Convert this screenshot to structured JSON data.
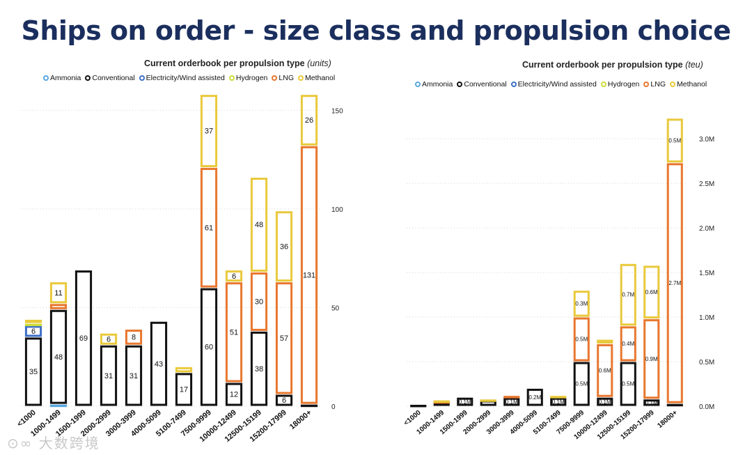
{
  "page": {
    "title": "Ships on order - size class and propulsion choice"
  },
  "watermark": "⊙∞ 大数跨境",
  "legend": [
    {
      "name": "Ammonia",
      "color": "#5aa7e0"
    },
    {
      "name": "Conventional",
      "color": "#111111"
    },
    {
      "name": "Electricity/Wind assisted",
      "color": "#3d6fc9"
    },
    {
      "name": "Hydrogen",
      "color": "#cddc39"
    },
    {
      "name": "LNG",
      "color": "#e8772e"
    },
    {
      "name": "Methanol",
      "color": "#e9c93b"
    }
  ],
  "chart_data": [
    {
      "type": "bar",
      "stacked": true,
      "title": "Current orderbook per propulsion type",
      "unit": "(units)",
      "categories": [
        "<1000",
        "1000-1499",
        "1500-1999",
        "2000-2999",
        "3000-3999",
        "4000-5099",
        "5100-7499",
        "7500-9999",
        "10000-12499",
        "12500-15199",
        "15200-17999",
        "18000+"
      ],
      "ylim": [
        0,
        160
      ],
      "yticks": [
        0,
        50,
        100,
        150
      ],
      "ytick_labels": [
        "0",
        "50",
        "100",
        "150"
      ],
      "series": [
        {
          "name": "Ammonia",
          "values": [
            0,
            1,
            0,
            0,
            0,
            0,
            0,
            0,
            0,
            0,
            0,
            0
          ],
          "labels": [
            "",
            "",
            "",
            "",
            "",
            "",
            "",
            "",
            "",
            "",
            "",
            ""
          ]
        },
        {
          "name": "Conventional",
          "values": [
            35,
            48,
            69,
            31,
            31,
            43,
            17,
            60,
            12,
            38,
            6,
            1
          ],
          "labels": [
            "35",
            "48",
            "69",
            "31",
            "31",
            "43",
            "17",
            "60",
            "12",
            "38",
            "6",
            ""
          ]
        },
        {
          "name": "Electricity/Wind assisted",
          "values": [
            6,
            0,
            0,
            0,
            0,
            0,
            0,
            0,
            0,
            0,
            0,
            0
          ],
          "labels": [
            "6",
            "",
            "",
            "",
            "",
            "",
            "",
            "",
            "",
            "",
            "",
            ""
          ]
        },
        {
          "name": "Hydrogen",
          "values": [
            1,
            0,
            0,
            0,
            0,
            0,
            0,
            0,
            0,
            0,
            0,
            0
          ],
          "labels": [
            "",
            "",
            "",
            "",
            "",
            "",
            "",
            "",
            "",
            "",
            "",
            ""
          ]
        },
        {
          "name": "LNG",
          "values": [
            0,
            3,
            0,
            0,
            8,
            0,
            0,
            61,
            51,
            30,
            57,
            131
          ],
          "labels": [
            "",
            "",
            "",
            "",
            "8",
            "",
            "",
            "61",
            "51",
            "30",
            "57",
            "131"
          ]
        },
        {
          "name": "Methanol",
          "values": [
            2,
            11,
            0,
            6,
            0,
            0,
            3,
            37,
            6,
            48,
            36,
            26
          ],
          "labels": [
            "",
            "11",
            "",
            "6",
            "",
            "",
            "",
            "37",
            "6",
            "48",
            "36",
            "26"
          ]
        }
      ]
    },
    {
      "type": "bar",
      "stacked": true,
      "title": "Current orderbook per propulsion type",
      "unit": "(teu)",
      "categories": [
        "<1000",
        "1000-1499",
        "1500-1999",
        "2000-2999",
        "3000-3999",
        "4000-5099",
        "5100-7499",
        "7500-9999",
        "10000-12499",
        "12500-15199",
        "15200-17999",
        "18000+"
      ],
      "ylim": [
        0,
        3.4
      ],
      "yticks": [
        0,
        0.5,
        1.0,
        1.5,
        2.0,
        2.5,
        3.0
      ],
      "ytick_labels": [
        "0.0M",
        "0.5M",
        "1.0M",
        "1.5M",
        "2.0M",
        "2.5M",
        "3.0M"
      ],
      "series": [
        {
          "name": "Ammonia",
          "values": [
            0,
            0,
            0,
            0,
            0,
            0,
            0,
            0,
            0,
            0,
            0,
            0
          ],
          "labels": [
            "",
            "",
            "",
            "",
            "",
            "",
            "",
            "",
            "",
            "",
            "",
            ""
          ]
        },
        {
          "name": "Conventional",
          "values": [
            0.02,
            0.05,
            0.1,
            0.07,
            0.1,
            0.2,
            0.1,
            0.5,
            0.1,
            0.5,
            0.08,
            0.03
          ],
          "labels": [
            "",
            "",
            "0.1M",
            "",
            "0.1M",
            "0.2M",
            "0.1M",
            "0.5M",
            "0.1M",
            "0.5M",
            "0.1M",
            ""
          ]
        },
        {
          "name": "Electricity/Wind assisted",
          "values": [
            0,
            0,
            0,
            0,
            0,
            0,
            0,
            0,
            0,
            0,
            0,
            0
          ],
          "labels": [
            "",
            "",
            "",
            "",
            "",
            "",
            "",
            "",
            "",
            "",
            "",
            ""
          ]
        },
        {
          "name": "Hydrogen",
          "values": [
            0,
            0,
            0,
            0,
            0,
            0,
            0,
            0,
            0,
            0,
            0,
            0
          ],
          "labels": [
            "",
            "",
            "",
            "",
            "",
            "",
            "",
            "",
            "",
            "",
            "",
            ""
          ]
        },
        {
          "name": "LNG",
          "values": [
            0,
            0.01,
            0,
            0,
            0.02,
            0,
            0,
            0.5,
            0.6,
            0.4,
            0.9,
            2.7
          ],
          "labels": [
            "",
            "",
            "",
            "",
            "",
            "",
            "",
            "0.5M",
            "0.6M",
            "0.4M",
            "0.9M",
            "2.7M"
          ]
        },
        {
          "name": "Methanol",
          "values": [
            0,
            0.01,
            0,
            0.01,
            0,
            0,
            0.02,
            0.3,
            0.05,
            0.7,
            0.6,
            0.5
          ],
          "labels": [
            "",
            "",
            "",
            "",
            "",
            "",
            "",
            "0.3M",
            "",
            "0.7M",
            "0.6M",
            "0.5M"
          ]
        }
      ]
    }
  ]
}
